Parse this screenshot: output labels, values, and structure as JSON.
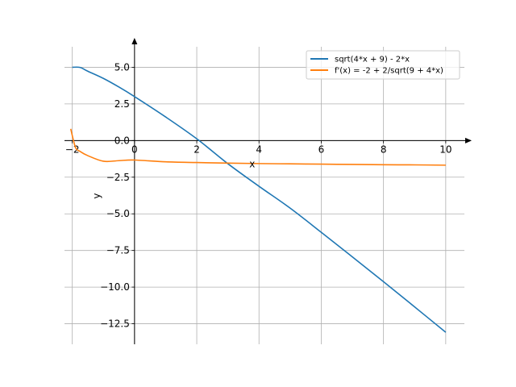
{
  "chart_data": {
    "type": "line",
    "title": "",
    "xlabel": "x",
    "ylabel": "y",
    "xlim": [
      -2.25,
      10.6
    ],
    "ylim": [
      -13.9,
      6.4
    ],
    "grid": true,
    "legend_position": "top-right",
    "x_ticks": [
      -2,
      0,
      2,
      4,
      6,
      8,
      10
    ],
    "x_tick_labels": [
      "−2",
      "0",
      "2",
      "4",
      "6",
      "8",
      "10"
    ],
    "y_ticks": [
      5.0,
      2.5,
      0.0,
      -2.5,
      -5.0,
      -7.5,
      -10.0,
      -12.5
    ],
    "y_tick_labels": [
      "5.0",
      "2.5",
      "0.0",
      "−2.5",
      "−5.0",
      "−7.5",
      "−10.0",
      "−12.5"
    ],
    "series": [
      {
        "name": "sqrt(4*x + 9) - 2*x",
        "color": "#1f77b4",
        "x": [
          -2.0,
          -1.75,
          -1.5,
          -1.0,
          -0.5,
          0,
          1,
          2,
          3,
          4,
          5,
          6,
          7,
          8,
          9,
          10
        ],
        "y": [
          5.0,
          4.99,
          4.73,
          4.24,
          3.65,
          3.0,
          1.61,
          0.12,
          -1.58,
          -3.12,
          -4.61,
          -6.26,
          -7.94,
          -9.63,
          -11.35,
          -13.08
        ]
      },
      {
        "name": "f'(x) = -2 + 2/sqrt(9 + 4*x)",
        "color": "#ff7f0e",
        "x": [
          -2.05,
          -1.9,
          -1.75,
          -1.5,
          -1.0,
          -0.5,
          0,
          1,
          2,
          3,
          4,
          5,
          6,
          7,
          8,
          9,
          10
        ],
        "y": [
          0.8,
          -0.45,
          -0.74,
          -1.03,
          -1.41,
          -1.37,
          -1.33,
          -1.45,
          -1.5,
          -1.54,
          -1.57,
          -1.59,
          -1.61,
          -1.63,
          -1.65,
          -1.66,
          -1.68
        ]
      }
    ]
  }
}
